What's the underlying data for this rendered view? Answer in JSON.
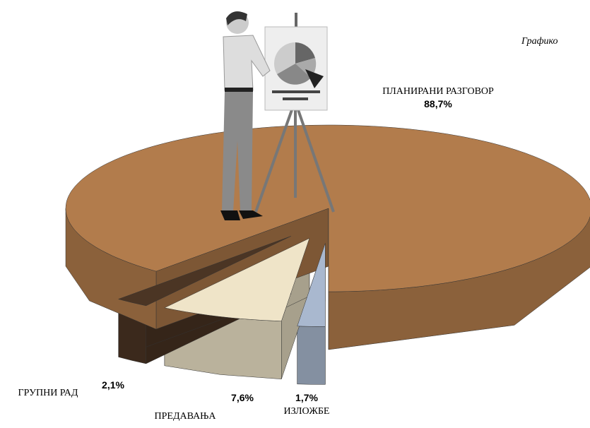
{
  "chart_data": {
    "type": "pie",
    "title": "Графико",
    "categories": [
      "ИЗЛОЖБЕ",
      "ПРЕДАВАЊА",
      "ГРУПНИ РАД",
      "ПЛАНИРАНИ РАЗГОВОР"
    ],
    "values": [
      1.7,
      7.6,
      2.1,
      88.7
    ],
    "value_labels": [
      "1,7%",
      "7,6%",
      "2,1%",
      "88,7%"
    ],
    "colors": [
      "#a9b8cf",
      "#efe4c8",
      "#4b3524",
      "#b27c4c"
    ]
  }
}
